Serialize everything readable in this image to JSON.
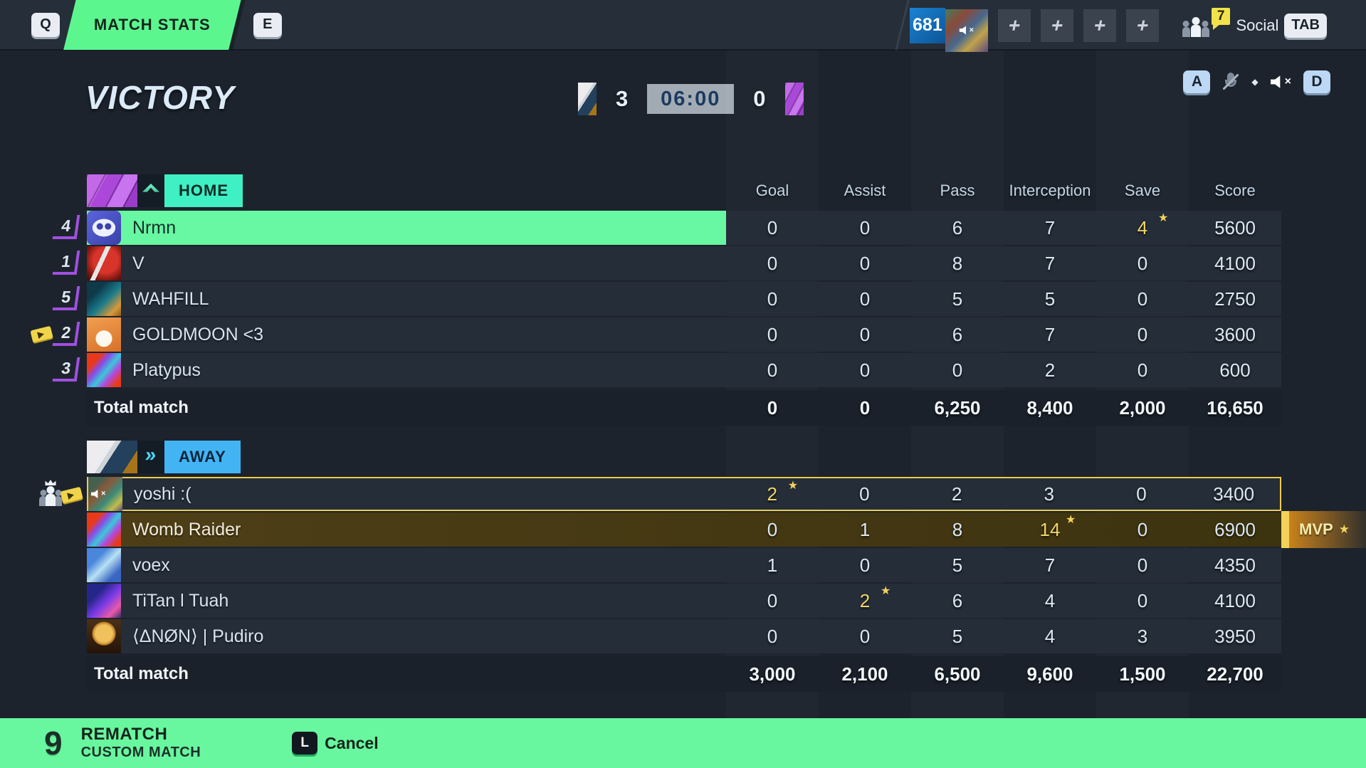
{
  "icons": {
    "star": "★",
    "plus": "+",
    "away_chevrons": "»",
    "diamond": "◆",
    "mute_x": "×"
  },
  "colors": {
    "accent_green": "#63f79b",
    "self_highlight": "#68f7a2",
    "home_label": "#3ff0c4",
    "away_label": "#42b4f4",
    "mvp_gold_row": "#4a3d16",
    "star_yellow": "#f2d25a",
    "outline_yellow": "#eecb4c",
    "timer_box": "#a2abb4",
    "currency_blue": "#1b82d4",
    "bracket_purple": "#a050e0"
  },
  "top_bar": {
    "key_q": "Q",
    "match_stats_tab": "MATCH STATS",
    "key_e": "E",
    "currency": "681",
    "social_badge": "7",
    "social_label": "Social",
    "key_tab": "TAB"
  },
  "header": {
    "result": "VICTORY",
    "score_left": "3",
    "timer": "06:00",
    "score_right": "0",
    "key_mic": "A",
    "key_speaker": "D"
  },
  "table": {
    "columns": [
      "Goal",
      "Assist",
      "Pass",
      "Interception",
      "Save",
      "Score"
    ]
  },
  "home": {
    "label": "HOME",
    "total_label": "Total match",
    "players": [
      {
        "num": "4",
        "name": "Nrmn",
        "avatar": "discord",
        "stats": [
          "0",
          "0",
          "6",
          "7",
          "4",
          "5600"
        ],
        "star": 4,
        "self": true
      },
      {
        "num": "1",
        "name": "V",
        "avatar": "cleat",
        "stats": [
          "0",
          "0",
          "8",
          "7",
          "0",
          "4100"
        ],
        "star": -1
      },
      {
        "num": "5",
        "name": "WAHFILL",
        "avatar": "peacock",
        "stats": [
          "0",
          "0",
          "5",
          "5",
          "0",
          "2750"
        ],
        "star": -1
      },
      {
        "num": "2",
        "name": "GOLDMOON <3",
        "avatar": "shiba",
        "stats": [
          "0",
          "0",
          "6",
          "7",
          "0",
          "3600"
        ],
        "star": -1,
        "ticket": true
      },
      {
        "num": "3",
        "name": "Platypus",
        "avatar": "snake",
        "stats": [
          "0",
          "0",
          "0",
          "2",
          "0",
          "600"
        ],
        "star": -1
      }
    ],
    "totals": [
      "0",
      "0",
      "6,250",
      "8,400",
      "2,000",
      "16,650"
    ]
  },
  "away": {
    "label": "AWAY",
    "mvp_label": "MVP",
    "total_label": "Total match",
    "players": [
      {
        "name": "yoshi :(",
        "avatar": "tiger",
        "stats": [
          "2",
          "0",
          "2",
          "3",
          "0",
          "3400"
        ],
        "star": 0,
        "outlined": true,
        "muted": true,
        "ticket": true,
        "host": true
      },
      {
        "name": "Womb Raider",
        "avatar": "snake",
        "stats": [
          "0",
          "1",
          "8",
          "14",
          "0",
          "6900"
        ],
        "star": 3,
        "mvp": true
      },
      {
        "name": "voex",
        "avatar": "bird",
        "stats": [
          "1",
          "0",
          "5",
          "7",
          "0",
          "4350"
        ],
        "star": -1
      },
      {
        "name": "TiTan l Tuah",
        "avatar": "dragonfly",
        "stats": [
          "0",
          "2",
          "6",
          "4",
          "0",
          "4100"
        ],
        "star": 1
      },
      {
        "name": "⟨ΔNØN⟩ | Pudiro",
        "avatar": "trophy",
        "stats": [
          "0",
          "0",
          "5",
          "4",
          "3",
          "3950"
        ],
        "star": -1
      }
    ],
    "totals": [
      "3,000",
      "2,100",
      "6,500",
      "9,600",
      "1,500",
      "22,700"
    ]
  },
  "bottom_bar": {
    "key": "9",
    "title": "REMATCH",
    "subtitle": "CUSTOM MATCH",
    "cancel_key": "L",
    "cancel_label": "Cancel"
  }
}
